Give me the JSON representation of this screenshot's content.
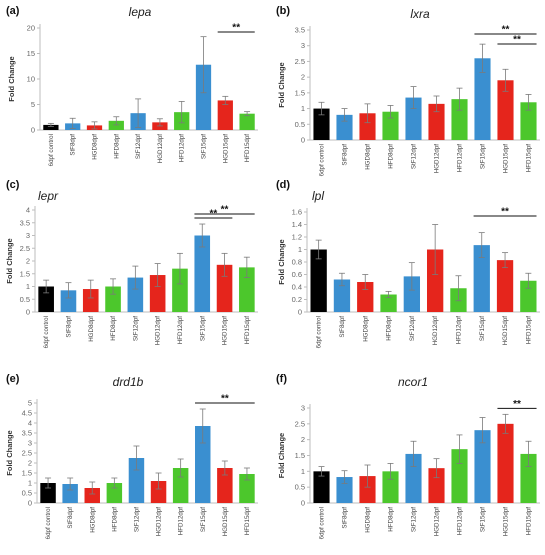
{
  "chart_data": [
    {
      "type": "bar",
      "panel_label": "(a)",
      "title": "lepa",
      "ylabel": "Fold Change",
      "ylim": [
        0,
        20
      ],
      "ticks": [
        "0",
        "5",
        "10",
        "15",
        "20"
      ],
      "categories": [
        "6dpf control",
        "StF8dpf",
        "HGD8dpf",
        "HFD8dpf",
        "StF12dpf",
        "HGD12dpf",
        "HFD12dpf",
        "StF15dpf",
        "HGD15dpf",
        "HFD15dpf"
      ],
      "values": [
        1.0,
        1.3,
        0.9,
        1.8,
        3.3,
        1.5,
        3.5,
        12.8,
        5.8,
        3.2
      ],
      "errors": [
        0.3,
        1.0,
        0.7,
        0.8,
        2.8,
        0.7,
        2.1,
        5.5,
        0.8,
        0.4
      ],
      "colors": [
        "#000000",
        "#3a8fd0",
        "#e5251c",
        "#4cc72c",
        "#3a8fd0",
        "#e5251c",
        "#4cc72c",
        "#3a8fd0",
        "#e5251c",
        "#4cc72c"
      ],
      "significance": [
        {
          "from": 8,
          "to": 9,
          "label": "**"
        }
      ]
    },
    {
      "type": "bar",
      "panel_label": "(b)",
      "title": "lxra",
      "ylabel": "Fold Change",
      "ylim": [
        0,
        3.5
      ],
      "ticks": [
        "0",
        "0.5",
        "1",
        "1.5",
        "2",
        "2.5",
        "3",
        "3.5"
      ],
      "categories": [
        "6dpf control",
        "StF8dpf",
        "HGD8dpf",
        "HFD8dpf",
        "StF12dpf",
        "HGD12dpf",
        "HFD12dpf",
        "StF15dpf",
        "HGD15dpf",
        "HFD15dpf"
      ],
      "values": [
        1.0,
        0.8,
        0.85,
        0.9,
        1.35,
        1.15,
        1.3,
        2.6,
        1.9,
        1.2
      ],
      "errors": [
        0.2,
        0.2,
        0.3,
        0.2,
        0.35,
        0.25,
        0.35,
        0.45,
        0.35,
        0.25
      ],
      "colors": [
        "#000000",
        "#3a8fd0",
        "#e5251c",
        "#4cc72c",
        "#3a8fd0",
        "#e5251c",
        "#4cc72c",
        "#3a8fd0",
        "#e5251c",
        "#4cc72c"
      ],
      "significance": [
        {
          "from": 7,
          "to": 9,
          "label": "**"
        },
        {
          "from": 8,
          "to": 9,
          "label": "**"
        }
      ]
    },
    {
      "type": "bar",
      "panel_label": "(c)",
      "title": "lepr",
      "ylabel": "Fold Change",
      "ylim": [
        0,
        4
      ],
      "ticks": [
        "0",
        "0.5",
        "1",
        "1.5",
        "2",
        "2.5",
        "3",
        "3.5",
        "4"
      ],
      "categories": [
        "6dpf control",
        "StF8dpf",
        "HGD8dpf",
        "HFD8dpf",
        "StF12dpf",
        "HGD12dpf",
        "HFD12dpf",
        "StF15dpf",
        "HGD15dpf",
        "HFD15dpf"
      ],
      "values": [
        1.0,
        0.85,
        0.9,
        1.0,
        1.35,
        1.45,
        1.7,
        3.0,
        1.85,
        1.75
      ],
      "errors": [
        0.25,
        0.3,
        0.35,
        0.3,
        0.45,
        0.45,
        0.6,
        0.45,
        0.45,
        0.4
      ],
      "colors": [
        "#000000",
        "#3a8fd0",
        "#e5251c",
        "#4cc72c",
        "#3a8fd0",
        "#e5251c",
        "#4cc72c",
        "#3a8fd0",
        "#e5251c",
        "#4cc72c"
      ],
      "significance": [
        {
          "from": 7,
          "to": 9,
          "label": "**"
        },
        {
          "from": 7,
          "to": 8,
          "label": "**"
        }
      ]
    },
    {
      "type": "bar",
      "panel_label": "(d)",
      "title": "lpl",
      "ylabel": "Fold Change",
      "ylim": [
        0,
        1.6
      ],
      "ticks": [
        "0",
        "0.2",
        "0.4",
        "0.6",
        "0.8",
        "1",
        "1.2",
        "1.4",
        "1.6"
      ],
      "categories": [
        "6dpf control",
        "StF8dpf",
        "HGD8dpf",
        "HFD8dpf",
        "StF12dpf",
        "HGD12dpf",
        "HFD12dpf",
        "StF15dpf",
        "HGD15dpf",
        "HFD15dpf"
      ],
      "values": [
        1.0,
        0.52,
        0.48,
        0.28,
        0.57,
        1.0,
        0.38,
        1.07,
        0.83,
        0.5
      ],
      "errors": [
        0.15,
        0.1,
        0.12,
        0.05,
        0.22,
        0.4,
        0.2,
        0.2,
        0.12,
        0.12
      ],
      "colors": [
        "#000000",
        "#3a8fd0",
        "#e5251c",
        "#4cc72c",
        "#3a8fd0",
        "#e5251c",
        "#4cc72c",
        "#3a8fd0",
        "#e5251c",
        "#4cc72c"
      ],
      "significance": [
        {
          "from": 7,
          "to": 9,
          "label": "**"
        }
      ]
    },
    {
      "type": "bar",
      "panel_label": "(e)",
      "title": "drd1b",
      "ylabel": "Fold Change",
      "ylim": [
        0,
        5
      ],
      "ticks": [
        "0",
        "0.5",
        "1",
        "1.5",
        "2",
        "2.5",
        "3",
        "3.5",
        "4",
        "4.5",
        "5"
      ],
      "categories": [
        "6dpf control",
        "StF8dpf",
        "HGD8dpf",
        "HFD8dpf",
        "StF12dpf",
        "HGD12dpf",
        "HFD12dpf",
        "StF15dpf",
        "HGD15dpf",
        "HFD15dpf"
      ],
      "values": [
        1.0,
        0.95,
        0.75,
        1.0,
        2.25,
        1.1,
        1.75,
        3.85,
        1.75,
        1.45
      ],
      "errors": [
        0.25,
        0.3,
        0.3,
        0.25,
        0.6,
        0.4,
        0.45,
        0.85,
        0.35,
        0.3
      ],
      "colors": [
        "#000000",
        "#3a8fd0",
        "#e5251c",
        "#4cc72c",
        "#3a8fd0",
        "#e5251c",
        "#4cc72c",
        "#3a8fd0",
        "#e5251c",
        "#4cc72c"
      ],
      "significance": [
        {
          "from": 7,
          "to": 9,
          "label": "**"
        }
      ]
    },
    {
      "type": "bar",
      "panel_label": "(f)",
      "title": "ncor1",
      "ylabel": "Fold Change",
      "ylim": [
        0,
        3
      ],
      "ticks": [
        "0",
        "0.5",
        "1",
        "1.5",
        "2",
        "2.5",
        "3"
      ],
      "categories": [
        "6dpf control",
        "StF8dpf",
        "HGD8dpf",
        "HFD8dpf",
        "StF12dpf",
        "HGD12dpf",
        "HFD12dpf",
        "StF15dpf",
        "HGD15dpf",
        "HFD15dpf"
      ],
      "values": [
        1.0,
        0.82,
        0.85,
        1.0,
        1.55,
        1.1,
        1.7,
        2.3,
        2.5,
        1.55
      ],
      "errors": [
        0.15,
        0.2,
        0.35,
        0.25,
        0.4,
        0.3,
        0.45,
        0.4,
        0.3,
        0.4
      ],
      "colors": [
        "#000000",
        "#3a8fd0",
        "#e5251c",
        "#4cc72c",
        "#3a8fd0",
        "#e5251c",
        "#4cc72c",
        "#3a8fd0",
        "#e5251c",
        "#4cc72c"
      ],
      "significance": [
        {
          "from": 8,
          "to": 9,
          "label": "**"
        }
      ]
    }
  ]
}
